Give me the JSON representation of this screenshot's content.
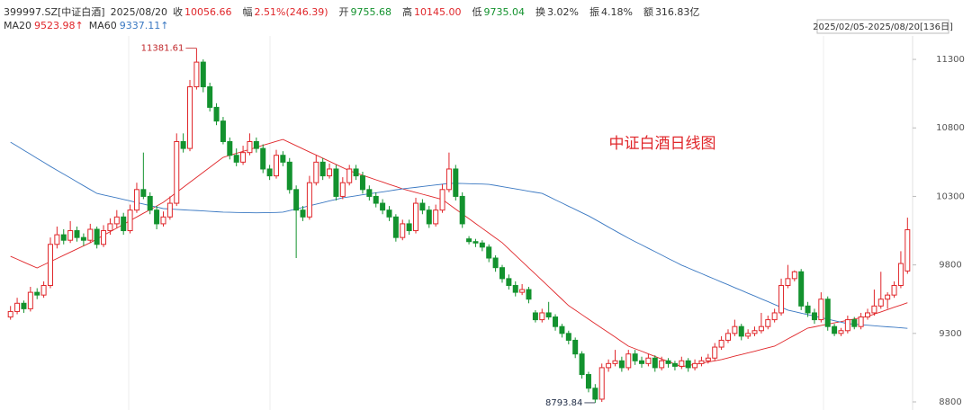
{
  "header": {
    "code": "399997.SZ[中证白酒]",
    "date": "2025/08/20",
    "fields": [
      {
        "label": "收",
        "value": "10056.66",
        "color": "#e0262a"
      },
      {
        "label": "幅",
        "value": "2.51%(246.39)",
        "color": "#e0262a"
      },
      {
        "label": "开",
        "value": "9755.68",
        "color": "#13922e"
      },
      {
        "label": "高",
        "value": "10145.00",
        "color": "#e0262a"
      },
      {
        "label": "低",
        "value": "9735.04",
        "color": "#13922e"
      },
      {
        "label": "换",
        "value": "3.02%",
        "color": "#333333"
      },
      {
        "label": "振",
        "value": "4.18%",
        "color": "#333333"
      },
      {
        "label": "额",
        "value": "316.83亿",
        "color": "#333333"
      }
    ]
  },
  "chart_data": {
    "type": "candlestick",
    "title": "中证白酒日线图",
    "range_label": "2025/02/05-2025/08/20[136日]",
    "up_color": "#e0262a",
    "down_color": "#13922e",
    "ylim": [
      8741,
      11471
    ],
    "yticks": [
      8800,
      9300,
      9800,
      10300,
      10800,
      11300
    ],
    "ohlc": [
      [
        9420,
        9500,
        9400,
        9460
      ],
      [
        9460,
        9560,
        9440,
        9520
      ],
      [
        9520,
        9540,
        9450,
        9480
      ],
      [
        9480,
        9640,
        9460,
        9600
      ],
      [
        9600,
        9630,
        9550,
        9580
      ],
      [
        9580,
        9680,
        9560,
        9650
      ],
      [
        9650,
        10000,
        9630,
        9950
      ],
      [
        9950,
        10080,
        9920,
        10020
      ],
      [
        10020,
        10060,
        9950,
        9980
      ],
      [
        9980,
        10120,
        9960,
        10050
      ],
      [
        10050,
        10080,
        9970,
        10000
      ],
      [
        10000,
        10030,
        9940,
        9980
      ],
      [
        9980,
        10100,
        9960,
        10060
      ],
      [
        10060,
        10080,
        9920,
        9950
      ],
      [
        9950,
        10090,
        9930,
        10050
      ],
      [
        10050,
        10140,
        10020,
        10100
      ],
      [
        10100,
        10200,
        10070,
        10150
      ],
      [
        10150,
        10180,
        10020,
        10050
      ],
      [
        10050,
        10240,
        10030,
        10200
      ],
      [
        10200,
        10400,
        10180,
        10350
      ],
      [
        10350,
        10620,
        10280,
        10300
      ],
      [
        10300,
        10330,
        10170,
        10200
      ],
      [
        10200,
        10230,
        10060,
        10100
      ],
      [
        10100,
        10190,
        10080,
        10150
      ],
      [
        10150,
        10300,
        10130,
        10250
      ],
      [
        10250,
        10760,
        10230,
        10700
      ],
      [
        10700,
        10760,
        10620,
        10650
      ],
      [
        10650,
        11150,
        10630,
        11100
      ],
      [
        11100,
        11381.61,
        11080,
        11280
      ],
      [
        11280,
        11300,
        11060,
        11100
      ],
      [
        11100,
        11130,
        10920,
        10950
      ],
      [
        10950,
        10980,
        10820,
        10850
      ],
      [
        10850,
        10880,
        10680,
        10700
      ],
      [
        10700,
        10730,
        10570,
        10600
      ],
      [
        10600,
        10650,
        10520,
        10550
      ],
      [
        10550,
        10670,
        10530,
        10620
      ],
      [
        10620,
        10760,
        10600,
        10700
      ],
      [
        10700,
        10730,
        10620,
        10650
      ],
      [
        10650,
        10680,
        10470,
        10500
      ],
      [
        10500,
        10530,
        10420,
        10450
      ],
      [
        10450,
        10640,
        10430,
        10600
      ],
      [
        10600,
        10630,
        10520,
        10550
      ],
      [
        10550,
        10580,
        10320,
        10350
      ],
      [
        10350,
        10380,
        9850,
        10200
      ],
      [
        10200,
        10230,
        10120,
        10150
      ],
      [
        10150,
        10450,
        10130,
        10400
      ],
      [
        10400,
        10600,
        10380,
        10550
      ],
      [
        10550,
        10580,
        10420,
        10450
      ],
      [
        10450,
        10540,
        10430,
        10500
      ],
      [
        10500,
        10530,
        10270,
        10300
      ],
      [
        10300,
        10440,
        10280,
        10400
      ],
      [
        10400,
        10530,
        10380,
        10500
      ],
      [
        10500,
        10530,
        10420,
        10450
      ],
      [
        10450,
        10480,
        10320,
        10350
      ],
      [
        10350,
        10380,
        10270,
        10300
      ],
      [
        10300,
        10330,
        10220,
        10250
      ],
      [
        10250,
        10280,
        10170,
        10200
      ],
      [
        10200,
        10230,
        10120,
        10150
      ],
      [
        10150,
        10170,
        9970,
        10000
      ],
      [
        10000,
        10130,
        9980,
        10100
      ],
      [
        10100,
        10130,
        10020,
        10050
      ],
      [
        10050,
        10290,
        10030,
        10250
      ],
      [
        10250,
        10280,
        10170,
        10200
      ],
      [
        10200,
        10230,
        10070,
        10100
      ],
      [
        10100,
        10240,
        10080,
        10200
      ],
      [
        10200,
        10390,
        10180,
        10350
      ],
      [
        10350,
        10620,
        10330,
        10500
      ],
      [
        10500,
        10530,
        10270,
        10300
      ],
      [
        10300,
        10330,
        10070,
        10100
      ],
      [
        9990,
        10010,
        9950,
        9970
      ],
      [
        9970,
        9990,
        9930,
        9960
      ],
      [
        9960,
        9980,
        9900,
        9930
      ],
      [
        9930,
        9950,
        9820,
        9850
      ],
      [
        9850,
        9870,
        9750,
        9780
      ],
      [
        9780,
        9800,
        9670,
        9700
      ],
      [
        9700,
        9730,
        9620,
        9650
      ],
      [
        9650,
        9680,
        9570,
        9600
      ],
      [
        9600,
        9660,
        9580,
        9620
      ],
      [
        9620,
        9640,
        9520,
        9550
      ],
      [
        9450,
        9470,
        9380,
        9400
      ],
      [
        9400,
        9480,
        9380,
        9450
      ],
      [
        9450,
        9530,
        9400,
        9420
      ],
      [
        9420,
        9440,
        9320,
        9350
      ],
      [
        9350,
        9370,
        9270,
        9300
      ],
      [
        9300,
        9320,
        9220,
        9250
      ],
      [
        9250,
        9270,
        9120,
        9150
      ],
      [
        9150,
        9170,
        8970,
        9000
      ],
      [
        9000,
        9020,
        8870,
        8900
      ],
      [
        8900,
        8930,
        8793.84,
        8820
      ],
      [
        8820,
        9080,
        8800,
        9050
      ],
      [
        9050,
        9110,
        9020,
        9080
      ],
      [
        9080,
        9180,
        9060,
        9100
      ],
      [
        9100,
        9130,
        9020,
        9050
      ],
      [
        9050,
        9180,
        9030,
        9150
      ],
      [
        9150,
        9180,
        9070,
        9100
      ],
      [
        9100,
        9130,
        9050,
        9080
      ],
      [
        9080,
        9150,
        9060,
        9120
      ],
      [
        9120,
        9140,
        9020,
        9050
      ],
      [
        9050,
        9130,
        9030,
        9100
      ],
      [
        9100,
        9120,
        9050,
        9080
      ],
      [
        9080,
        9100,
        9030,
        9060
      ],
      [
        9060,
        9130,
        9040,
        9100
      ],
      [
        9100,
        9120,
        9020,
        9050
      ],
      [
        9050,
        9110,
        9030,
        9080
      ],
      [
        9080,
        9130,
        9060,
        9100
      ],
      [
        9100,
        9150,
        9080,
        9120
      ],
      [
        9120,
        9230,
        9100,
        9200
      ],
      [
        9200,
        9280,
        9180,
        9250
      ],
      [
        9250,
        9330,
        9230,
        9300
      ],
      [
        9300,
        9400,
        9280,
        9350
      ],
      [
        9350,
        9370,
        9250,
        9280
      ],
      [
        9280,
        9330,
        9260,
        9300
      ],
      [
        9300,
        9350,
        9280,
        9320
      ],
      [
        9320,
        9450,
        9300,
        9350
      ],
      [
        9350,
        9430,
        9330,
        9400
      ],
      [
        9400,
        9480,
        9380,
        9450
      ],
      [
        9450,
        9700,
        9430,
        9650
      ],
      [
        9650,
        9800,
        9630,
        9700
      ],
      [
        9700,
        9760,
        9680,
        9750
      ],
      [
        9750,
        9770,
        9470,
        9500
      ],
      [
        9500,
        9530,
        9420,
        9450
      ],
      [
        9450,
        9480,
        9370,
        9400
      ],
      [
        9400,
        9600,
        9380,
        9550
      ],
      [
        9550,
        9570,
        9320,
        9350
      ],
      [
        9350,
        9370,
        9280,
        9300
      ],
      [
        9300,
        9340,
        9280,
        9320
      ],
      [
        9320,
        9430,
        9300,
        9400
      ],
      [
        9400,
        9420,
        9330,
        9350
      ],
      [
        9350,
        9450,
        9330,
        9420
      ],
      [
        9420,
        9480,
        9400,
        9450
      ],
      [
        9450,
        9620,
        9430,
        9500
      ],
      [
        9500,
        9750,
        9480,
        9550
      ],
      [
        9550,
        9600,
        9480,
        9580
      ],
      [
        9580,
        9680,
        9560,
        9650
      ],
      [
        9650,
        9900,
        9630,
        9810.27
      ],
      [
        9755.68,
        10145,
        9735.04,
        10056.66
      ]
    ],
    "lines": [
      {
        "name": "MA20",
        "color": "#e0262a",
        "value_label": "9523.98↑",
        "values": [
          9863,
          9842,
          9820,
          9799,
          9778,
          9801,
          9824,
          9847,
          9870,
          9893,
          9916,
          9939,
          9962,
          9989,
          10016,
          10043,
          10069,
          10096,
          10123,
          10150,
          10177,
          10203,
          10230,
          10257,
          10293,
          10330,
          10366,
          10403,
          10439,
          10476,
          10512,
          10549,
          10585,
          10600,
          10614,
          10629,
          10643,
          10658,
          10673,
          10687,
          10702,
          10716,
          10693,
          10670,
          10647,
          10624,
          10602,
          10579,
          10556,
          10533,
          10510,
          10487,
          10471,
          10454,
          10438,
          10421,
          10405,
          10388,
          10372,
          10355,
          10342,
          10329,
          10316,
          10303,
          10290,
          10277,
          10242,
          10207,
          10172,
          10137,
          10102,
          10067,
          10032,
          9997,
          9962,
          9916,
          9870,
          9824,
          9778,
          9733,
          9687,
          9641,
          9595,
          9549,
          9503,
          9470,
          9437,
          9404,
          9371,
          9338,
          9306,
          9273,
          9240,
          9207,
          9188,
          9170,
          9151,
          9132,
          9113,
          9095,
          9076,
          9057,
          9066,
          9074,
          9083,
          9092,
          9100,
          9109,
          9121,
          9134,
          9146,
          9158,
          9170,
          9183,
          9195,
          9207,
          9233,
          9260,
          9286,
          9313,
          9339,
          9348,
          9358,
          9367,
          9377,
          9386,
          9396,
          9405,
          9415,
          9424,
          9441,
          9457,
          9474,
          9491,
          9507,
          9523.98
        ]
      },
      {
        "name": "MA60",
        "color": "#3a78c2",
        "value_label": "9337.11↑",
        "values": [
          10696,
          10667,
          10637,
          10608,
          10578,
          10549,
          10519,
          10491,
          10463,
          10435,
          10406,
          10378,
          10350,
          10322,
          10311,
          10300,
          10289,
          10278,
          10267,
          10255,
          10244,
          10233,
          10222,
          10211,
          10208,
          10205,
          10202,
          10199,
          10197,
          10194,
          10191,
          10188,
          10185,
          10184,
          10183,
          10182,
          10181,
          10180,
          10181,
          10182,
          10183,
          10185,
          10197,
          10208,
          10220,
          10232,
          10243,
          10255,
          10267,
          10278,
          10290,
          10297,
          10304,
          10312,
          10319,
          10326,
          10333,
          10340,
          10348,
          10355,
          10361,
          10366,
          10372,
          10378,
          10384,
          10389,
          10395,
          10395,
          10394,
          10393,
          10391,
          10390,
          10388,
          10380,
          10371,
          10363,
          10355,
          10347,
          10338,
          10330,
          10322,
          10299,
          10275,
          10252,
          10228,
          10205,
          10181,
          10158,
          10131,
          10104,
          10076,
          10049,
          10022,
          9995,
          9970,
          9946,
          9921,
          9897,
          9872,
          9847,
          9823,
          9798,
          9778,
          9757,
          9737,
          9716,
          9696,
          9675,
          9655,
          9634,
          9614,
          9593,
          9573,
          9552,
          9532,
          9511,
          9491,
          9470,
          9459,
          9448,
          9437,
          9426,
          9415,
          9404,
          9393,
          9382,
          9371,
          9367,
          9363,
          9360,
          9356,
          9352,
          9348,
          9345,
          9341,
          9337.11
        ]
      }
    ],
    "annotations": [
      {
        "index": 28,
        "field": 1,
        "color": "#c0262a"
      },
      {
        "index": 88,
        "field": 2,
        "color": "#1d2a44"
      }
    ]
  }
}
